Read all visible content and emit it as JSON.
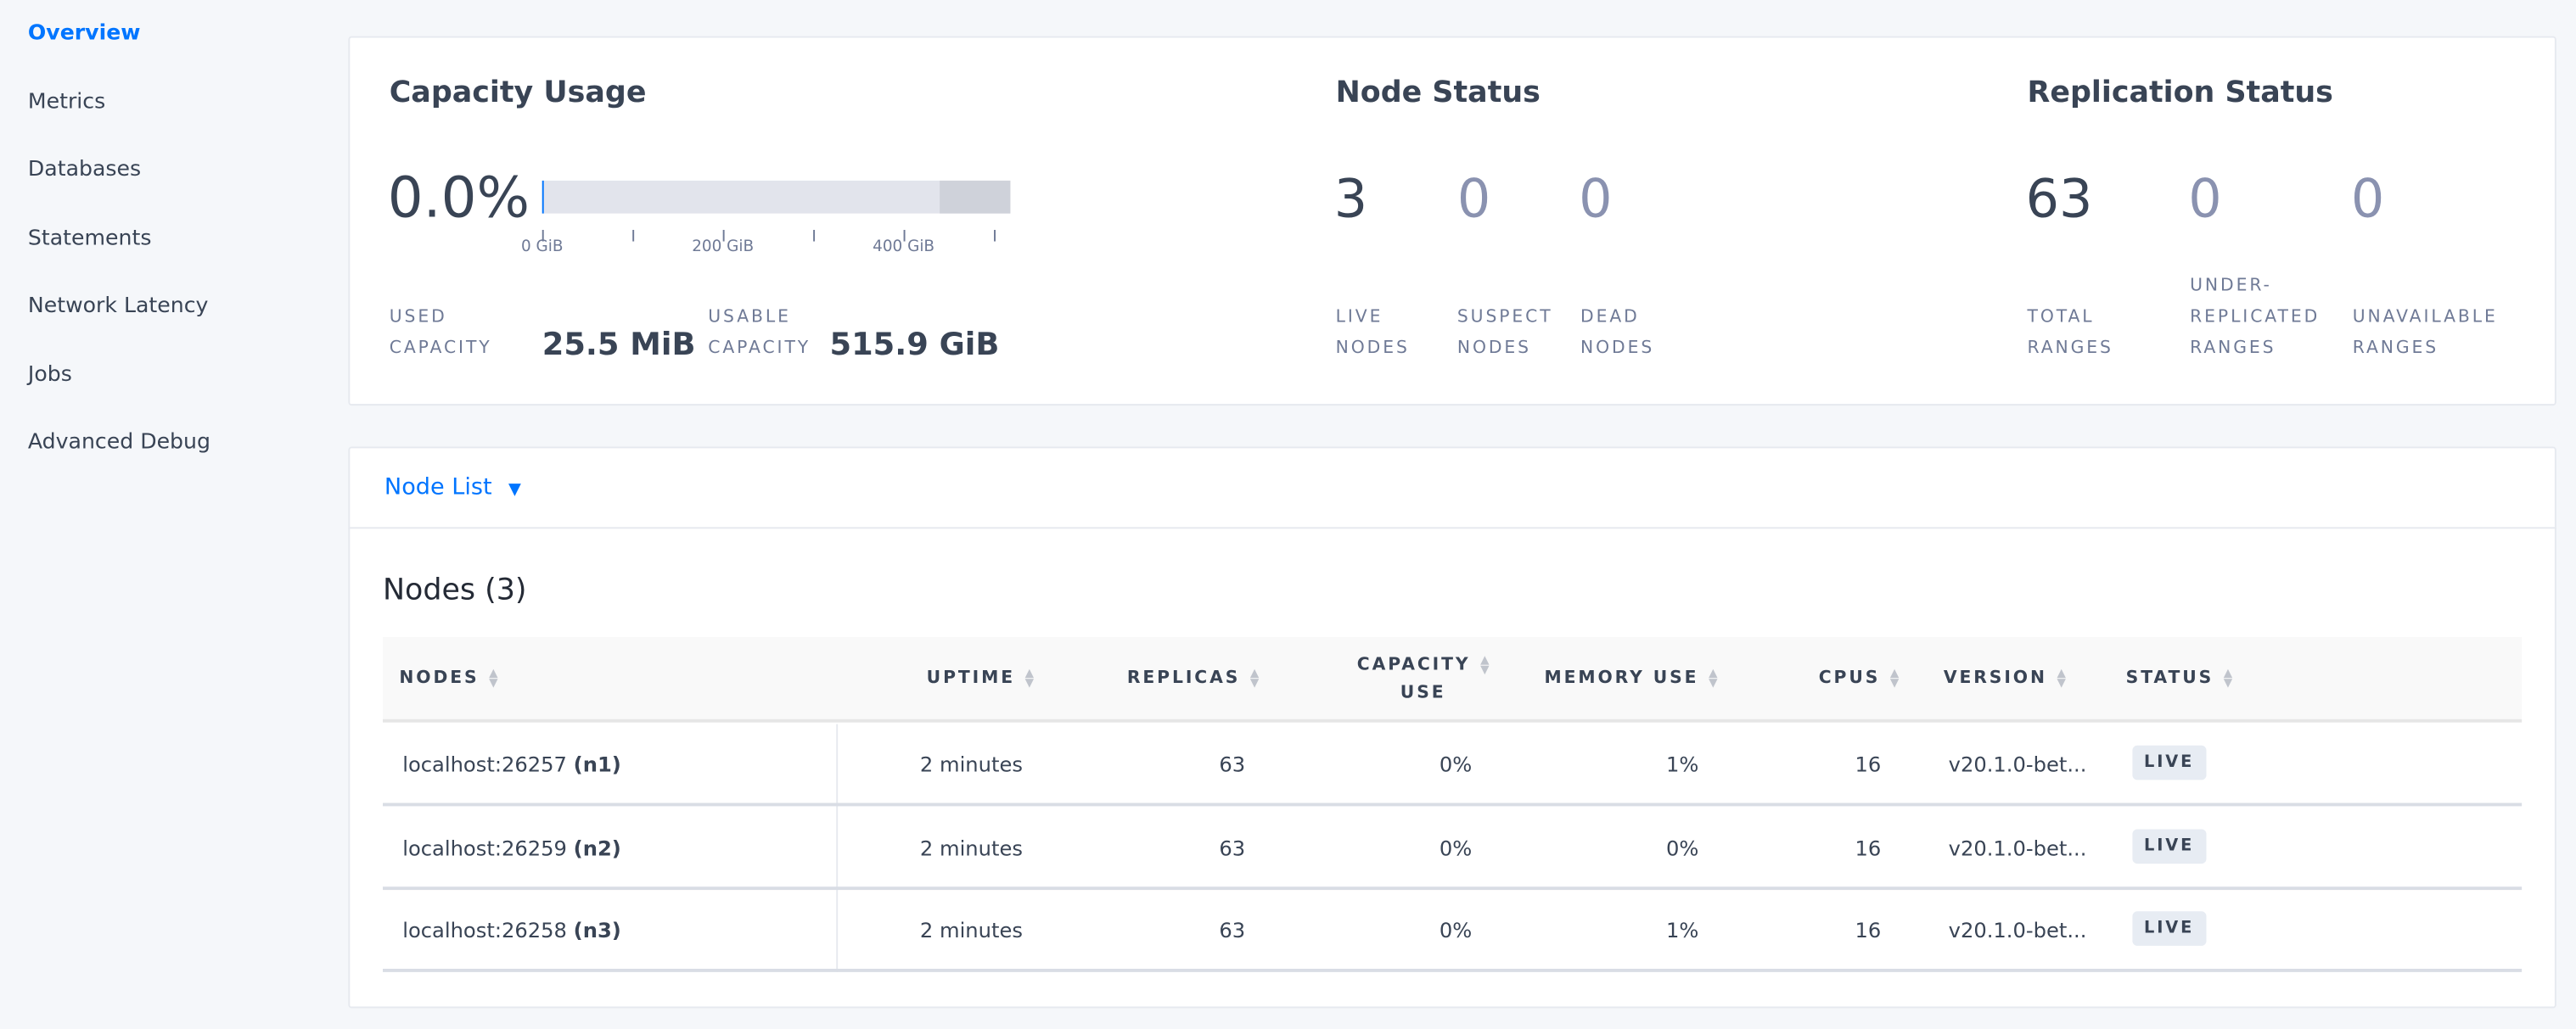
{
  "sidebar": {
    "items": [
      {
        "label": "Overview",
        "active": true
      },
      {
        "label": "Metrics"
      },
      {
        "label": "Databases"
      },
      {
        "label": "Statements"
      },
      {
        "label": "Network Latency"
      },
      {
        "label": "Jobs"
      },
      {
        "label": "Advanced Debug"
      }
    ]
  },
  "capacity": {
    "title": "Capacity Usage",
    "percent": "0.0%",
    "used_fraction": 0.0,
    "ticks": [
      "0 GiB",
      "200 GiB",
      "400 GiB"
    ],
    "used_label_1": "USED",
    "used_label_2": "CAPACITY",
    "used_value": "25.5 MiB",
    "usable_label_1": "USABLE",
    "usable_label_2": "CAPACITY",
    "usable_value": "515.9 GiB"
  },
  "node_status": {
    "title": "Node Status",
    "live": "3",
    "live_l1": "LIVE",
    "live_l2": "NODES",
    "suspect": "0",
    "suspect_l1": "SUSPECT",
    "suspect_l2": "NODES",
    "dead": "0",
    "dead_l1": "DEAD",
    "dead_l2": "NODES"
  },
  "replication": {
    "title": "Replication Status",
    "total": "63",
    "total_l1": "TOTAL",
    "total_l2": "RANGES",
    "under": "0",
    "under_l1": "UNDER-",
    "under_l2": "REPLICATED",
    "under_l3": "RANGES",
    "unavail": "0",
    "unavail_l1": "UNAVAILABLE",
    "unavail_l2": "RANGES"
  },
  "node_list": {
    "dropdown": "Node List",
    "title": "Nodes (3)",
    "columns": {
      "nodes": "NODES",
      "uptime": "UPTIME",
      "replicas": "REPLICAS",
      "capacity_1": "CAPACITY",
      "capacity_2": "USE",
      "memory": "MEMORY USE",
      "cpus": "CPUS",
      "version": "VERSION",
      "status": "STATUS"
    },
    "rows": [
      {
        "host": "localhost:26257",
        "id": "(n1)",
        "uptime": "2 minutes",
        "replicas": "63",
        "capacity": "0%",
        "memory": "1%",
        "cpus": "16",
        "version": "v20.1.0-bet...",
        "status": "LIVE"
      },
      {
        "host": "localhost:26259",
        "id": "(n2)",
        "uptime": "2 minutes",
        "replicas": "63",
        "capacity": "0%",
        "memory": "0%",
        "cpus": "16",
        "version": "v20.1.0-bet...",
        "status": "LIVE"
      },
      {
        "host": "localhost:26258",
        "id": "(n3)",
        "uptime": "2 minutes",
        "replicas": "63",
        "capacity": "0%",
        "memory": "1%",
        "cpus": "16",
        "version": "v20.1.0-bet...",
        "status": "LIVE"
      }
    ]
  }
}
